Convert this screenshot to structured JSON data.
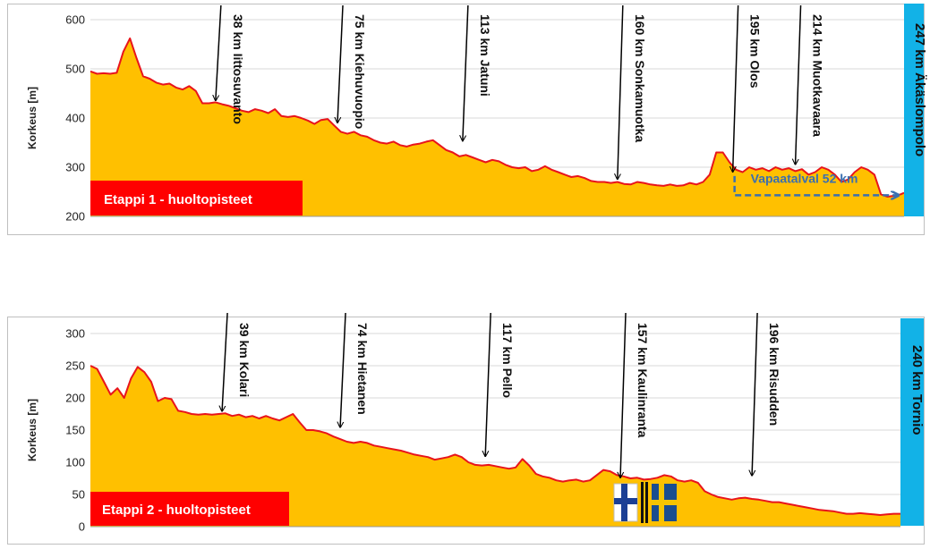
{
  "colors": {
    "fill": "#FFC000",
    "line": "#E8141B",
    "label_box": "#FF0000",
    "end_box": "#12B2E7",
    "note": "#3A6FB0",
    "arrow": "#000000"
  },
  "chart_data": [
    {
      "type": "area",
      "ylabel": "Korkeus [m]",
      "ylim": [
        200,
        600
      ],
      "yticks": [
        "200",
        "300",
        "400",
        "500",
        "600"
      ],
      "grid": true,
      "stage_label": "Etappi 1 - huoltopisteet",
      "end_label": "247 km Äkäslompolo",
      "note_label": "Vapaatalval 52 km",
      "xlim": [
        0,
        247
      ],
      "profile": {
        "x": [
          0,
          2,
          4,
          6,
          8,
          10,
          12,
          14,
          16,
          18,
          20,
          22,
          24,
          26,
          28,
          30,
          32,
          34,
          36,
          38,
          40,
          42,
          44,
          46,
          48,
          50,
          52,
          54,
          56,
          58,
          60,
          62,
          64,
          66,
          68,
          70,
          72,
          74,
          76,
          78,
          80,
          82,
          84,
          86,
          88,
          90,
          92,
          94,
          96,
          98,
          100,
          102,
          104,
          106,
          108,
          110,
          112,
          114,
          116,
          118,
          120,
          122,
          124,
          126,
          128,
          130,
          132,
          134,
          136,
          138,
          140,
          142,
          144,
          146,
          148,
          150,
          152,
          154,
          156,
          158,
          160,
          162,
          164,
          166,
          168,
          170,
          172,
          174,
          176,
          178,
          180,
          182,
          184,
          186,
          188,
          190,
          192,
          194,
          196,
          198,
          200,
          202,
          204,
          206,
          208,
          210,
          212,
          214,
          216,
          218,
          220,
          222,
          224,
          226,
          228,
          230,
          232,
          234,
          236,
          238,
          240,
          242,
          244,
          246,
          247
        ],
        "y": [
          495,
          490,
          491,
          490,
          492,
          535,
          562,
          522,
          485,
          480,
          472,
          468,
          470,
          462,
          458,
          465,
          455,
          430,
          430,
          432,
          428,
          425,
          420,
          415,
          412,
          418,
          415,
          410,
          418,
          404,
          402,
          404,
          400,
          395,
          388,
          396,
          398,
          385,
          372,
          368,
          372,
          365,
          362,
          355,
          350,
          348,
          352,
          345,
          342,
          346,
          348,
          352,
          355,
          345,
          335,
          330,
          322,
          325,
          320,
          315,
          310,
          315,
          312,
          305,
          300,
          298,
          300,
          292,
          295,
          302,
          295,
          290,
          285,
          280,
          282,
          278,
          272,
          270,
          270,
          268,
          270,
          266,
          265,
          270,
          268,
          265,
          263,
          262,
          265,
          262,
          263,
          268,
          265,
          270,
          285,
          330,
          330,
          310,
          295,
          290,
          300,
          295,
          298,
          292,
          300,
          295,
          298,
          292,
          296,
          285,
          290,
          300,
          295,
          285,
          270,
          275,
          290,
          300,
          295,
          285,
          245,
          240,
          242,
          245,
          248
        ]
      },
      "markers": [
        {
          "km": 38,
          "elev": 430,
          "label": "38 km Iittosuvanto"
        },
        {
          "km": 75,
          "elev": 385,
          "label": "75 km Kiehuvuopio"
        },
        {
          "km": 113,
          "elev": 348,
          "label": "113 km Jatuni"
        },
        {
          "km": 160,
          "elev": 270,
          "label": "160 km Sonkamuotka"
        },
        {
          "km": 195,
          "elev": 285,
          "label": "195 km Olos"
        },
        {
          "km": 214,
          "elev": 300,
          "label": "214 km Muotkavaara"
        }
      ]
    },
    {
      "type": "area",
      "ylabel": "Korkeus [m]",
      "ylim": [
        0,
        300
      ],
      "yticks": [
        "0",
        "50",
        "100",
        "150",
        "200",
        "250",
        "300"
      ],
      "grid": true,
      "stage_label": "Etappi 2 - huoltopisteet",
      "end_label": "240 km Tornio",
      "xlim": [
        0,
        240
      ],
      "profile": {
        "x": [
          0,
          2,
          4,
          6,
          8,
          10,
          12,
          14,
          16,
          18,
          20,
          22,
          24,
          26,
          28,
          30,
          32,
          34,
          36,
          38,
          40,
          42,
          44,
          46,
          48,
          50,
          52,
          54,
          56,
          58,
          60,
          62,
          64,
          66,
          68,
          70,
          72,
          74,
          76,
          78,
          80,
          82,
          84,
          86,
          88,
          90,
          92,
          94,
          96,
          98,
          100,
          102,
          104,
          106,
          108,
          110,
          112,
          114,
          116,
          118,
          120,
          122,
          124,
          126,
          128,
          130,
          132,
          134,
          136,
          138,
          140,
          142,
          144,
          146,
          148,
          150,
          152,
          154,
          156,
          158,
          160,
          162,
          164,
          166,
          168,
          170,
          172,
          174,
          176,
          178,
          180,
          182,
          184,
          186,
          188,
          190,
          192,
          194,
          196,
          198,
          200,
          202,
          204,
          206,
          208,
          210,
          212,
          214,
          216,
          218,
          220,
          222,
          224,
          226,
          228,
          230,
          232,
          234,
          236,
          238,
          240
        ],
        "y": [
          250,
          245,
          225,
          205,
          215,
          200,
          230,
          248,
          240,
          225,
          195,
          200,
          198,
          180,
          178,
          175,
          174,
          175,
          174,
          175,
          176,
          172,
          174,
          170,
          172,
          168,
          172,
          168,
          165,
          170,
          175,
          162,
          150,
          150,
          148,
          145,
          140,
          136,
          132,
          130,
          132,
          130,
          126,
          124,
          122,
          120,
          118,
          115,
          112,
          110,
          108,
          104,
          106,
          108,
          112,
          108,
          100,
          96,
          95,
          96,
          94,
          92,
          90,
          92,
          105,
          95,
          82,
          78,
          76,
          72,
          70,
          72,
          73,
          70,
          72,
          80,
          88,
          86,
          80,
          78,
          75,
          76,
          73,
          74,
          76,
          80,
          78,
          72,
          70,
          72,
          68,
          55,
          50,
          46,
          44,
          42,
          44,
          45,
          43,
          42,
          40,
          38,
          38,
          36,
          34,
          32,
          30,
          28,
          26,
          25,
          24,
          22,
          20,
          20,
          21,
          20,
          19,
          18,
          19,
          20,
          20
        ]
      },
      "markers": [
        {
          "km": 39,
          "elev": 175,
          "label": "39 km Kolari"
        },
        {
          "km": 74,
          "elev": 150,
          "label": "74 km Hietanen"
        },
        {
          "km": 117,
          "elev": 105,
          "label": "117 km Pello"
        },
        {
          "km": 157,
          "elev": 72,
          "label": "157 km Kaulinranta"
        },
        {
          "km": 196,
          "elev": 75,
          "label": "196 km Risudden"
        }
      ]
    }
  ]
}
